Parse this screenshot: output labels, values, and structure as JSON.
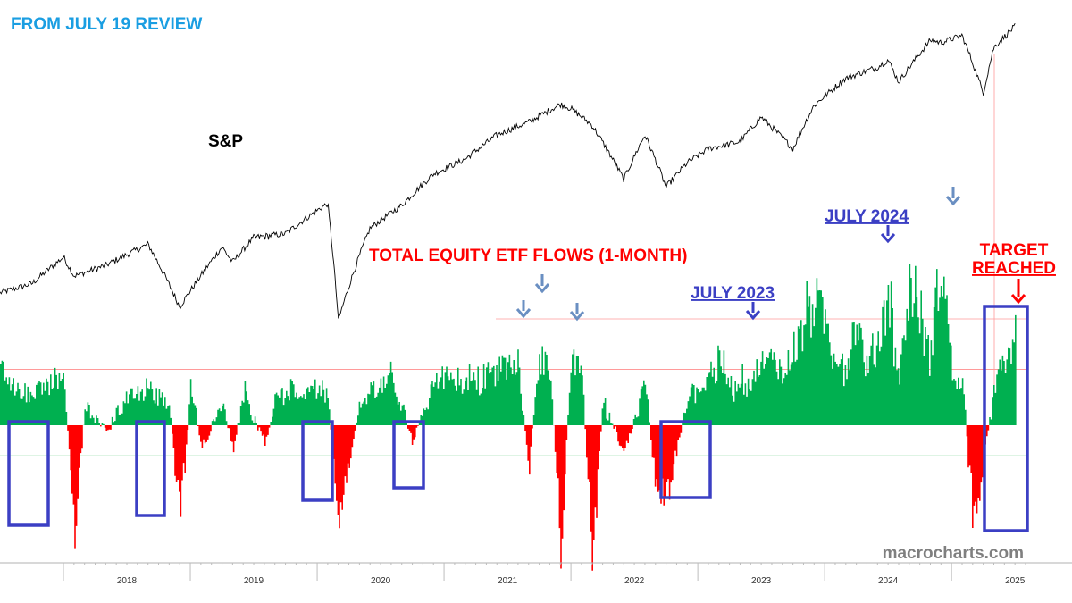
{
  "header_text": "FROM JULY 19 REVIEW",
  "watermark": "macrocharts.com",
  "colors": {
    "header": "#1a9ee2",
    "sp_line": "#000000",
    "positive_flow": "#00b050",
    "negative_flow": "#ff0000",
    "box": "#3b3fc4",
    "annotation_blue": "#3b3fc4",
    "annotation_red": "#ff0000",
    "small_arrow": "#6a8fc2",
    "upper_ref_line": "#ff9a9a",
    "lower_ref_line": "#a8e0b8",
    "watermark": "#7f7f7f"
  },
  "chart_data": [
    {
      "type": "line",
      "title": "S&P",
      "x_range": [
        "2017-07",
        "2025-08"
      ],
      "x": [
        "2017-07",
        "2017-10",
        "2018-01",
        "2018-02",
        "2018-05",
        "2018-09",
        "2018-12",
        "2019-04",
        "2019-05",
        "2019-07",
        "2019-10",
        "2020-01",
        "2020-02",
        "2020-03",
        "2020-06",
        "2020-09",
        "2020-12",
        "2021-03",
        "2021-06",
        "2021-09",
        "2021-12",
        "2022-01",
        "2022-03",
        "2022-06",
        "2022-08",
        "2022-10",
        "2022-12",
        "2023-02",
        "2023-05",
        "2023-07",
        "2023-10",
        "2023-12",
        "2024-03",
        "2024-06",
        "2024-07",
        "2024-08",
        "2024-11",
        "2024-12",
        "2025-02",
        "2025-04",
        "2025-05",
        "2025-07"
      ],
      "values": [
        2470,
        2550,
        2800,
        2620,
        2720,
        2930,
        2350,
        2900,
        2750,
        3000,
        3040,
        3300,
        3380,
        2240,
        3100,
        3360,
        3750,
        3950,
        4300,
        4500,
        4790,
        4720,
        4450,
        3680,
        4300,
        3580,
        3900,
        4100,
        4200,
        4580,
        4100,
        4770,
        5250,
        5460,
        5600,
        5180,
        6000,
        5950,
        6100,
        4980,
        5850,
        6300
      ]
    },
    {
      "type": "area",
      "title": "TOTAL EQUITY ETF FLOWS (1-MONTH)",
      "x_range": [
        "2017-07",
        "2025-08"
      ],
      "x": [
        "2017-07",
        "2017-09",
        "2017-11",
        "2018-01",
        "2018-02",
        "2018-03",
        "2018-05",
        "2018-07",
        "2018-09",
        "2018-11",
        "2018-12",
        "2019-01",
        "2019-02",
        "2019-04",
        "2019-05",
        "2019-06",
        "2019-08",
        "2019-09",
        "2019-11",
        "2020-01",
        "2020-02",
        "2020-03",
        "2020-05",
        "2020-06",
        "2020-08",
        "2020-10",
        "2020-12",
        "2021-01",
        "2021-03",
        "2021-05",
        "2021-07",
        "2021-08",
        "2021-09",
        "2021-10",
        "2021-11",
        "2021-12",
        "2022-01",
        "2022-02",
        "2022-03",
        "2022-04",
        "2022-06",
        "2022-08",
        "2022-09",
        "2022-10",
        "2022-12",
        "2023-01",
        "2023-03",
        "2023-04",
        "2023-06",
        "2023-08",
        "2023-09",
        "2023-10",
        "2023-12",
        "2024-02",
        "2024-03",
        "2024-04",
        "2024-05",
        "2024-06",
        "2024-07",
        "2024-08",
        "2024-09",
        "2024-11",
        "2024-12",
        "2025-01",
        "2025-02",
        "2025-03",
        "2025-04",
        "2025-05",
        "2025-07"
      ],
      "values": [
        0.6,
        0.3,
        0.45,
        0.55,
        -1.3,
        0.2,
        -0.1,
        0.3,
        0.4,
        0.2,
        -1.25,
        0.5,
        -0.3,
        0.25,
        -0.3,
        0.4,
        -0.25,
        0.3,
        0.35,
        0.45,
        0.3,
        -1.1,
        0.2,
        0.4,
        0.5,
        -0.2,
        0.5,
        0.6,
        0.5,
        0.55,
        0.7,
        0.65,
        -0.5,
        0.9,
        0.65,
        -1.4,
        0.8,
        0.6,
        -1.6,
        0.3,
        -0.4,
        0.5,
        -0.8,
        -0.9,
        0.3,
        0.4,
        0.75,
        0.45,
        0.5,
        0.8,
        0.6,
        0.9,
        1.5,
        0.8,
        0.7,
        1.2,
        0.6,
        1.0,
        1.6,
        0.5,
        1.7,
        0.8,
        2.0,
        0.6,
        0.5,
        -1.2,
        -0.4,
        0.4,
        1.05
      ],
      "ylim": [
        -2.0,
        2.2
      ],
      "reference_lines": [
        0.55,
        -0.3
      ]
    }
  ],
  "year_labels": [
    "2018",
    "2019",
    "2020",
    "2021",
    "2022",
    "2023",
    "2024",
    "2025"
  ],
  "annotations": {
    "sp_label": "S&P",
    "flows_label": "TOTAL EQUITY ETF FLOWS (1-MONTH)",
    "july_2023": "JULY 2023",
    "july_2024": "JULY 2024",
    "target_line1": "TARGET",
    "target_line2": "REACHED"
  }
}
